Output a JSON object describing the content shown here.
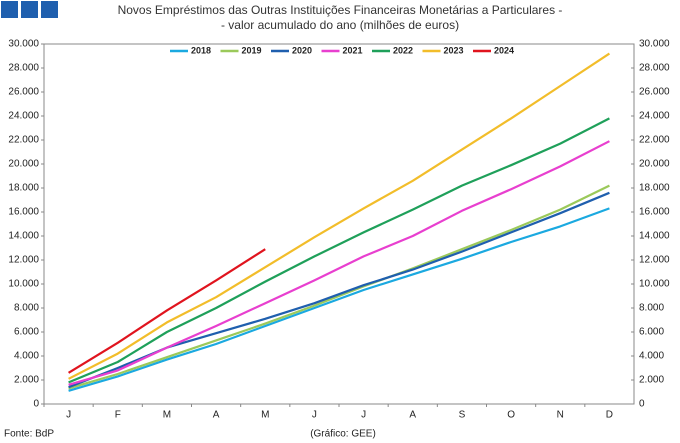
{
  "chart_data": {
    "type": "line",
    "title": "Novos Empréstimos das Outras Instituições Financeiras Monetárias a Particulares -",
    "subtitle": "- valor acumulado do ano (milhões de euros)",
    "source": "Fonte: BdP",
    "credit": "(Gráfico: GEE)",
    "categories": [
      "J",
      "F",
      "M",
      "A",
      "M",
      "J",
      "J",
      "A",
      "S",
      "O",
      "N",
      "D"
    ],
    "series": [
      {
        "name": "2018",
        "color": "#1ba9e0",
        "values": [
          1100,
          2300,
          3700,
          5000,
          6500,
          8000,
          9500,
          10800,
          12100,
          13500,
          14800,
          16300
        ]
      },
      {
        "name": "2019",
        "color": "#9bc95a",
        "values": [
          1300,
          2500,
          3900,
          5300,
          6700,
          8200,
          9800,
          11300,
          12900,
          14500,
          16200,
          18200
        ]
      },
      {
        "name": "2020",
        "color": "#1f5fae",
        "values": [
          1400,
          3000,
          4700,
          5900,
          7100,
          8400,
          9900,
          11200,
          12700,
          14300,
          15900,
          17600
        ]
      },
      {
        "name": "2021",
        "color": "#e83fcf",
        "values": [
          1600,
          2800,
          4700,
          6500,
          8400,
          10300,
          12300,
          14000,
          16100,
          17900,
          19800,
          21900
        ]
      },
      {
        "name": "2022",
        "color": "#1fa05a",
        "values": [
          1800,
          3500,
          6000,
          8000,
          10200,
          12300,
          14300,
          16200,
          18200,
          19900,
          21700,
          23800
        ]
      },
      {
        "name": "2023",
        "color": "#f2bd2a",
        "values": [
          2100,
          4200,
          6800,
          8900,
          11400,
          13900,
          16300,
          18600,
          21200,
          23800,
          26500,
          29200
        ]
      },
      {
        "name": "2024",
        "color": "#e0141e",
        "values": [
          2600,
          5100,
          7800,
          10300,
          12900,
          null,
          null,
          null,
          null,
          null,
          null,
          null
        ]
      }
    ],
    "ylim": [
      0,
      30000
    ],
    "yticks": [
      0,
      {
        "value": 2000,
        "label": "2.000"
      },
      {
        "value": 4000,
        "label": "4.000"
      },
      {
        "value": 6000,
        "label": "6.000"
      },
      {
        "value": 8000,
        "label": "8.000"
      },
      {
        "value": 10000,
        "label": "10.000"
      },
      {
        "value": 12000,
        "label": "12.000"
      },
      {
        "value": 14000,
        "label": "14.000"
      },
      {
        "value": 16000,
        "label": "16.000"
      },
      {
        "value": 18000,
        "label": "18.000"
      },
      {
        "value": 20000,
        "label": "20.000"
      },
      {
        "value": 22000,
        "label": "22.000"
      },
      {
        "value": 24000,
        "label": "24.000"
      },
      {
        "value": 26000,
        "label": "26.000"
      },
      {
        "value": 28000,
        "label": "28.000"
      },
      {
        "value": 30000,
        "label": "30.000"
      }
    ],
    "y2lim": [
      0,
      30000
    ],
    "y2ticks": [
      0,
      {
        "value": 2000,
        "label": "2.000"
      },
      {
        "value": 4000,
        "label": "4.000"
      },
      {
        "value": 6000,
        "label": "6.000"
      },
      {
        "value": 8000,
        "label": "8.000"
      },
      {
        "value": 10000,
        "label": "10.000"
      },
      {
        "value": 12000,
        "label": "12.000"
      },
      {
        "value": 14000,
        "label": "14.000"
      },
      {
        "value": 16000,
        "label": "16.000"
      },
      {
        "value": 18000,
        "label": "18.000"
      },
      {
        "value": 20000,
        "label": "20.000"
      },
      {
        "value": 22000,
        "label": "22.000"
      },
      {
        "value": 24000,
        "label": "24.000"
      },
      {
        "value": 26000,
        "label": "26.000"
      },
      {
        "value": 28000,
        "label": "28.000"
      },
      {
        "value": 30000,
        "label": "30.000"
      }
    ],
    "grid": false,
    "legend": "top"
  }
}
